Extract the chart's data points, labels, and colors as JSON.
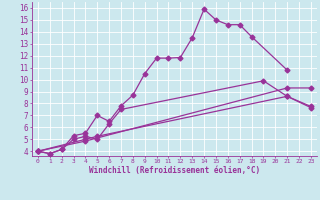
{
  "xlabel": "Windchill (Refroidissement éolien,°C)",
  "bg_color": "#cce8ee",
  "line_color": "#993399",
  "grid_color": "#ffffff",
  "xlim": [
    -0.5,
    23.5
  ],
  "ylim": [
    3.6,
    16.5
  ],
  "xticks": [
    0,
    1,
    2,
    3,
    4,
    5,
    6,
    7,
    8,
    9,
    10,
    11,
    12,
    13,
    14,
    15,
    16,
    17,
    18,
    19,
    20,
    21,
    22,
    23
  ],
  "yticks": [
    4,
    5,
    6,
    7,
    8,
    9,
    10,
    11,
    12,
    13,
    14,
    15,
    16
  ],
  "line1_x": [
    0,
    1,
    2,
    3,
    4,
    5,
    6,
    7,
    8,
    9,
    10,
    11,
    12,
    13,
    14,
    15,
    16,
    17,
    18,
    21
  ],
  "line1_y": [
    4.0,
    3.8,
    4.15,
    5.3,
    5.5,
    7.0,
    6.5,
    7.8,
    8.7,
    10.5,
    11.8,
    11.8,
    11.85,
    13.5,
    15.9,
    15.0,
    14.6,
    14.6,
    13.6,
    10.8
  ],
  "line2_x": [
    0,
    1,
    2,
    3,
    4,
    5,
    6,
    7,
    19,
    21,
    23
  ],
  "line2_y": [
    4.0,
    3.8,
    4.15,
    5.0,
    5.25,
    5.0,
    6.3,
    7.5,
    9.9,
    8.6,
    7.75
  ],
  "line3_x": [
    0,
    4,
    5,
    21,
    23
  ],
  "line3_y": [
    4.0,
    5.0,
    5.25,
    8.6,
    7.65
  ],
  "line4_x": [
    0,
    4,
    21,
    23
  ],
  "line4_y": [
    4.0,
    4.85,
    9.3,
    9.3
  ]
}
